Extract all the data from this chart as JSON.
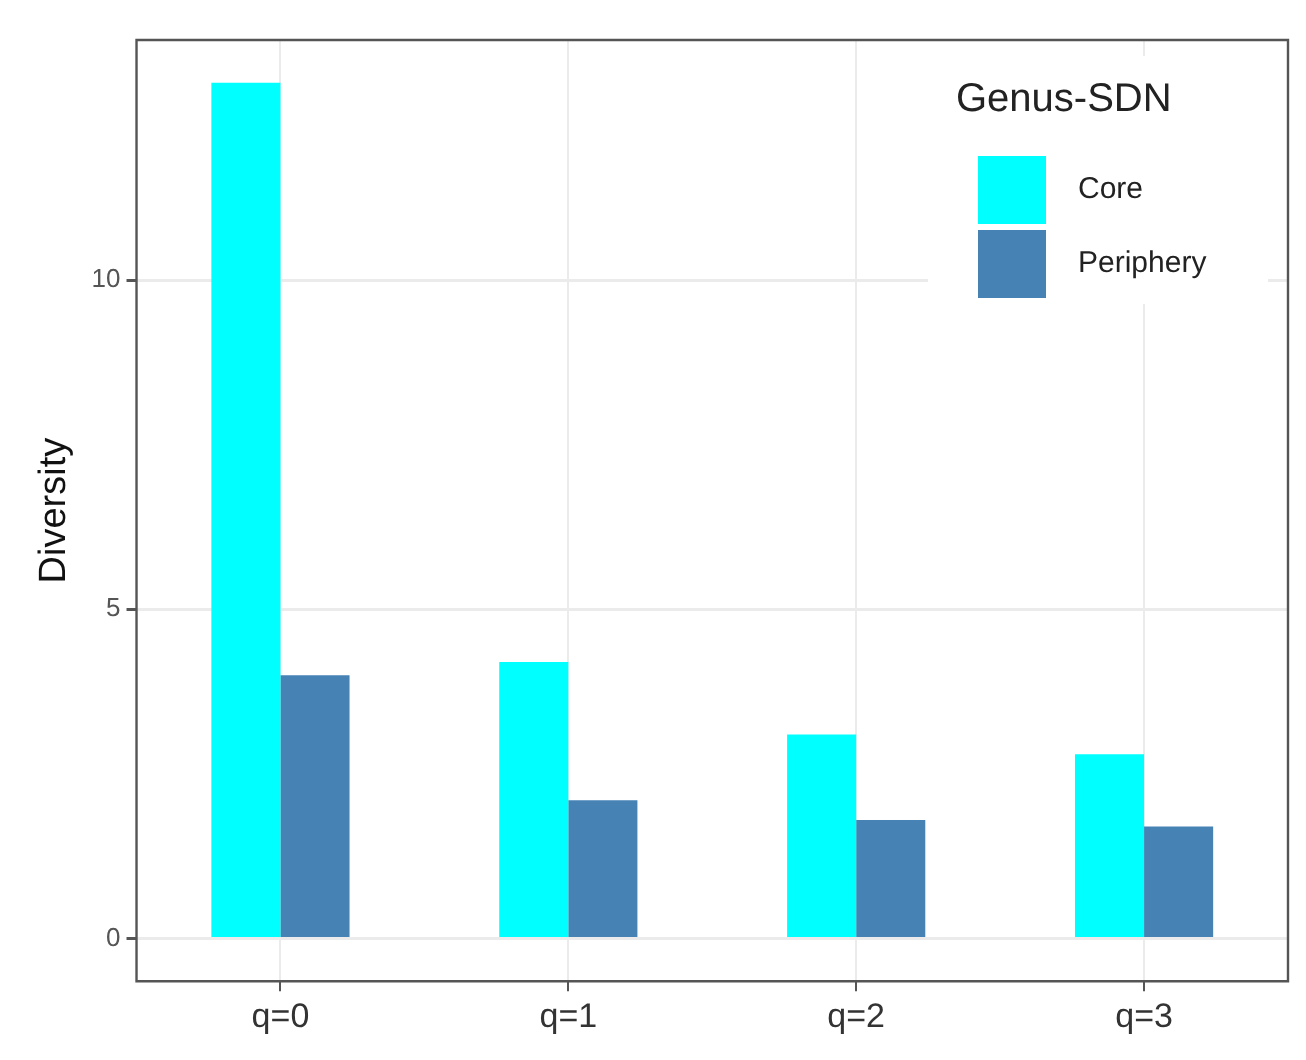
{
  "chart_data": {
    "type": "bar",
    "ylabel": "Diversity",
    "legend_title": "Genus-SDN",
    "categories": [
      "q=0",
      "q=1",
      "q=2",
      "q=3"
    ],
    "series": [
      {
        "name": "Core",
        "color": "#00ffff",
        "values": [
          13,
          4.2,
          3.1,
          2.8
        ]
      },
      {
        "name": "Periphery",
        "color": "#4682b4",
        "values": [
          4,
          2.1,
          1.8,
          1.7
        ]
      }
    ],
    "ylim": [
      -0.65,
      13.65
    ],
    "yticks": [
      0,
      5,
      10
    ],
    "grid": true,
    "legend": "top right"
  }
}
